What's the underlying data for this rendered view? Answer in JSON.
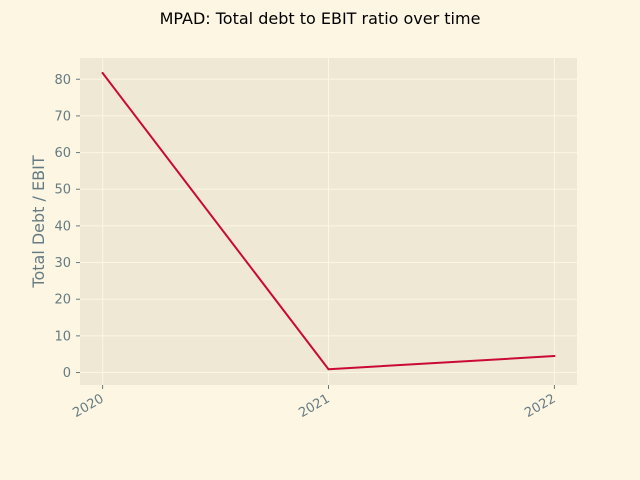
{
  "chart_data": {
    "type": "line",
    "title": "MPAD: Total debt to EBIT ratio over time",
    "xlabel": "",
    "ylabel": "Total Debt / EBIT",
    "x": [
      "2020",
      "2021",
      "2022"
    ],
    "series": [
      {
        "values": [
          81.7,
          0.9,
          4.5
        ]
      }
    ],
    "xlim": [
      2019.9,
      2022.1
    ],
    "ylim": [
      -3.4,
      85.8
    ],
    "yticks": [
      0,
      10,
      20,
      30,
      40,
      50,
      60,
      70,
      80
    ],
    "yticklabels": [
      "0",
      "10",
      "20",
      "30",
      "40",
      "50",
      "60",
      "70",
      "80"
    ],
    "grid": true,
    "colors": {
      "figure_bg": "#fdf6e3",
      "plot_bg": "#eee8d5",
      "grid": "#fdf6e3",
      "line": "#cb0a33",
      "tick": "#657b83"
    }
  }
}
